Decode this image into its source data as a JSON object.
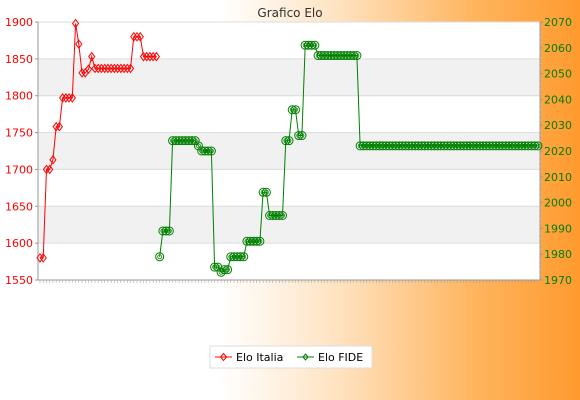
{
  "chart_data": {
    "type": "line",
    "title": "Grafico Elo",
    "grid": true,
    "legend_position": "bottom-center",
    "y_left": {
      "min": 1550,
      "max": 1900,
      "ticks": [
        1550,
        1600,
        1650,
        1700,
        1750,
        1800,
        1850,
        1900
      ],
      "color": "#ff0000"
    },
    "y_right": {
      "min": 1970,
      "max": 2070,
      "ticks": [
        1970,
        1980,
        1990,
        2000,
        2010,
        2020,
        2030,
        2040,
        2050,
        2060,
        2070
      ],
      "color": "#008000"
    },
    "series": [
      {
        "name": "Elo Italia",
        "axis": "left",
        "color": "#ff0000",
        "values": [
          1580,
          1580,
          1700,
          1700,
          1713,
          1758,
          1758,
          1797,
          1797,
          1797,
          1797,
          1898,
          1870,
          1831,
          1831,
          1836,
          1853,
          1837,
          1837,
          1837,
          1837,
          1837,
          1837,
          1837,
          1837,
          1837,
          1837,
          1837,
          1837,
          1880,
          1880,
          1880,
          1853,
          1853,
          1853,
          1853,
          1853
        ]
      },
      {
        "name": "Elo FIDE",
        "axis": "right",
        "color": "#008000",
        "values": [
          null,
          null,
          null,
          null,
          null,
          null,
          null,
          null,
          null,
          null,
          null,
          null,
          null,
          null,
          null,
          null,
          null,
          null,
          null,
          null,
          null,
          null,
          null,
          null,
          null,
          null,
          null,
          null,
          null,
          null,
          null,
          null,
          null,
          null,
          null,
          null,
          null,
          1979,
          1989,
          1989,
          1989,
          2024,
          2024,
          2024,
          2024,
          2024,
          2024,
          2024,
          2024,
          2022,
          2020,
          2020,
          2020,
          2020,
          1975,
          1975,
          1973,
          1974,
          1974,
          1979,
          1979,
          1979,
          1979,
          1979,
          1985,
          1985,
          1985,
          1985,
          1985,
          2004,
          2004,
          1995,
          1995,
          1995,
          1995,
          1995,
          2024,
          2024,
          2036,
          2036,
          2026,
          2026,
          2061,
          2061,
          2061,
          2061,
          2057,
          2057,
          2057,
          2057,
          2057,
          2057,
          2057,
          2057,
          2057,
          2057,
          2057,
          2057,
          2057,
          2022,
          2022,
          2022,
          2022,
          2022,
          2022,
          2022,
          2022,
          2022,
          2022,
          2022,
          2022,
          2022,
          2022,
          2022,
          2022,
          2022,
          2022,
          2022,
          2022,
          2022,
          2022,
          2022,
          2022,
          2022,
          2022,
          2022,
          2022,
          2022,
          2022,
          2022,
          2022,
          2022,
          2022,
          2022,
          2022,
          2022,
          2022,
          2022,
          2022,
          2022,
          2022,
          2022,
          2022,
          2022,
          2022,
          2022,
          2022,
          2022,
          2022,
          2022,
          2022,
          2022,
          2022,
          2022,
          2022
        ]
      }
    ]
  }
}
